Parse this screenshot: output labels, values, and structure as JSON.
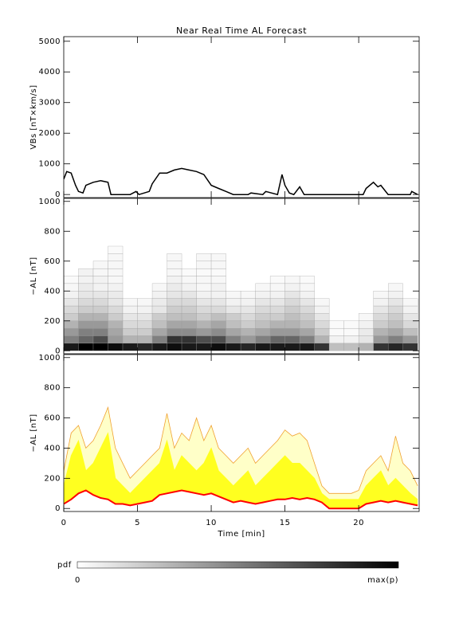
{
  "chart_data": [
    {
      "type": "line",
      "title": "Near Real Time AL Forecast",
      "y_label": "VBs [nT×km/s]",
      "x": [
        0,
        0.2,
        0.5,
        0.8,
        1,
        1.3,
        1.5,
        2,
        2.5,
        3,
        3.2,
        4.5,
        4.9,
        5.1,
        5.8,
        6,
        6.5,
        7,
        7.5,
        8,
        8.5,
        9,
        9.5,
        10,
        10.5,
        11,
        11.5,
        12.5,
        12.7,
        13.5,
        13.7,
        14.5,
        14.8,
        15,
        15.3,
        15.6,
        16,
        16.3,
        20.3,
        20.5,
        21,
        21.3,
        21.5,
        22,
        23.5,
        23.6,
        24
      ],
      "values": [
        500,
        750,
        700,
        300,
        100,
        50,
        300,
        400,
        450,
        400,
        0,
        0,
        100,
        0,
        100,
        350,
        700,
        700,
        800,
        850,
        800,
        750,
        650,
        300,
        200,
        100,
        0,
        0,
        50,
        0,
        100,
        0,
        650,
        300,
        50,
        0,
        250,
        0,
        0,
        200,
        400,
        250,
        300,
        0,
        0,
        100,
        0
      ],
      "color": "#000000",
      "xlim": [
        0,
        24.1
      ],
      "xticks": [
        0,
        5,
        10,
        15,
        20
      ],
      "ylim": [
        -100,
        5150
      ],
      "yticks": [
        0,
        1000,
        2000,
        3000,
        4000,
        5000
      ]
    },
    {
      "type": "heatmap",
      "y_label": "−AL [nT]",
      "x_bins": [
        0,
        1,
        2,
        3,
        4,
        5,
        6,
        7,
        8,
        9,
        10,
        11,
        12,
        13,
        14,
        15,
        16,
        17,
        18,
        19,
        20,
        21,
        22,
        23,
        24
      ],
      "y_bins": [
        0,
        50,
        100,
        150,
        200,
        250,
        300,
        350,
        400,
        450,
        500,
        550,
        600,
        650,
        700
      ],
      "z": [
        [
          0.9,
          1,
          1,
          0.95,
          0.9,
          0.85,
          0.9,
          0.95,
          0.9,
          0.9,
          0.95,
          0.9,
          0.85,
          0.9,
          0.9,
          0.9,
          0.9,
          0.8,
          0.25,
          0.25,
          0.3,
          0.8,
          0.85,
          0.8
        ],
        [
          0.5,
          0.6,
          0.7,
          0.4,
          0.3,
          0.3,
          0.5,
          0.8,
          0.8,
          0.7,
          0.7,
          0.5,
          0.4,
          0.5,
          0.6,
          0.6,
          0.5,
          0.3,
          0.05,
          0.05,
          0.1,
          0.4,
          0.5,
          0.4
        ],
        [
          0.4,
          0.5,
          0.5,
          0.35,
          0.2,
          0.2,
          0.35,
          0.45,
          0.45,
          0.4,
          0.45,
          0.35,
          0.3,
          0.35,
          0.4,
          0.4,
          0.35,
          0.2,
          0.02,
          0.02,
          0.08,
          0.3,
          0.35,
          0.25
        ],
        [
          0.3,
          0.4,
          0.4,
          0.3,
          0.15,
          0.15,
          0.25,
          0.35,
          0.35,
          0.3,
          0.35,
          0.25,
          0.2,
          0.25,
          0.3,
          0.3,
          0.25,
          0.15,
          0.02,
          0.02,
          0.05,
          0.2,
          0.25,
          0.15
        ],
        [
          0.2,
          0.3,
          0.3,
          0.2,
          0.1,
          0.1,
          0.2,
          0.25,
          0.25,
          0.2,
          0.25,
          0.2,
          0.15,
          0.2,
          0.2,
          0.25,
          0.2,
          0.1,
          0,
          0,
          0.03,
          0.15,
          0.2,
          0.1
        ],
        [
          0.15,
          0.2,
          0.2,
          0.15,
          0.05,
          0.05,
          0.1,
          0.2,
          0.2,
          0.15,
          0.15,
          0.1,
          0.1,
          0.15,
          0.15,
          0.2,
          0.15,
          0.05,
          0,
          0,
          0,
          0.1,
          0.15,
          0.05
        ],
        [
          0.1,
          0.15,
          0.15,
          0.1,
          0.03,
          0.03,
          0.08,
          0.15,
          0.15,
          0.1,
          0.1,
          0.05,
          0.05,
          0.1,
          0.1,
          0.15,
          0.1,
          0.03,
          0,
          0,
          0,
          0.05,
          0.1,
          0.03
        ],
        [
          0.05,
          0.1,
          0.1,
          0.08,
          0,
          0,
          0.05,
          0.1,
          0.1,
          0.05,
          0.05,
          0.03,
          0.03,
          0.05,
          0.05,
          0.1,
          0.05,
          0,
          0,
          0,
          0,
          0.03,
          0.05,
          0
        ],
        [
          0.03,
          0.08,
          0.05,
          0.05,
          0,
          0,
          0.03,
          0.08,
          0.05,
          0.03,
          0.05,
          0,
          0,
          0.03,
          0.03,
          0.05,
          0.03,
          0,
          0,
          0,
          0,
          0,
          0.03,
          0
        ],
        [
          0.02,
          0.05,
          0.05,
          0.03,
          0,
          0,
          0,
          0.05,
          0.03,
          0.03,
          0.03,
          0,
          0,
          0,
          0.02,
          0.03,
          0.02,
          0,
          0,
          0,
          0,
          0,
          0,
          0
        ],
        [
          0,
          0.05,
          0.03,
          0.03,
          0,
          0,
          0,
          0.03,
          0.02,
          0.02,
          0.02,
          0,
          0,
          0,
          0,
          0,
          0,
          0,
          0,
          0,
          0,
          0,
          0,
          0
        ],
        [
          0,
          0,
          0.03,
          0.03,
          0,
          0,
          0,
          0.03,
          0,
          0.03,
          0.03,
          0,
          0,
          0,
          0,
          0,
          0,
          0,
          0,
          0,
          0,
          0,
          0,
          0
        ],
        [
          0,
          0,
          0,
          0.03,
          0,
          0,
          0,
          0.03,
          0,
          0.03,
          0.03,
          0,
          0,
          0,
          0,
          0,
          0,
          0,
          0,
          0,
          0,
          0,
          0,
          0
        ],
        [
          0,
          0,
          0,
          0.02,
          0,
          0,
          0,
          0,
          0,
          0,
          0,
          0,
          0,
          0,
          0,
          0,
          0,
          0,
          0,
          0,
          0,
          0,
          0,
          0
        ]
      ],
      "xlim": [
        0,
        24.1
      ],
      "xticks": [
        0,
        5,
        10,
        15,
        20
      ],
      "ylim": [
        -20,
        1020
      ],
      "yticks": [
        0,
        200,
        400,
        600,
        800,
        1000
      ]
    },
    {
      "type": "band",
      "y_label": "−AL [nT]",
      "x_label": "Time [min]",
      "x": [
        0,
        0.5,
        1,
        1.5,
        2,
        2.5,
        3,
        3.5,
        4,
        4.5,
        5,
        5.5,
        6,
        6.5,
        7,
        7.5,
        8,
        8.5,
        9,
        9.5,
        10,
        10.5,
        11,
        11.5,
        12,
        12.5,
        13,
        13.5,
        14,
        14.5,
        15,
        15.5,
        16,
        16.5,
        17,
        17.5,
        18,
        18.5,
        19,
        19.5,
        20,
        20.5,
        21,
        21.5,
        22,
        22.5,
        23,
        23.5,
        24
      ],
      "series": [
        {
          "color": "#f0a030",
          "values": [
            250,
            500,
            550,
            400,
            450,
            550,
            670,
            400,
            300,
            200,
            250,
            300,
            350,
            400,
            630,
            400,
            500,
            450,
            600,
            450,
            550,
            400,
            350,
            300,
            350,
            400,
            300,
            350,
            400,
            450,
            520,
            480,
            500,
            450,
            300,
            150,
            100,
            100,
            100,
            100,
            120,
            250,
            300,
            350,
            250,
            480,
            300,
            250,
            150
          ]
        },
        {
          "color": "#ffff20",
          "values": [
            150,
            350,
            450,
            250,
            300,
            400,
            500,
            200,
            150,
            100,
            150,
            200,
            250,
            300,
            450,
            250,
            350,
            300,
            250,
            300,
            400,
            250,
            200,
            150,
            200,
            250,
            150,
            200,
            250,
            300,
            350,
            300,
            300,
            250,
            200,
            100,
            60,
            60,
            60,
            60,
            60,
            150,
            200,
            250,
            150,
            200,
            150,
            100,
            60
          ]
        },
        {
          "color": "#ff0000",
          "values": [
            30,
            60,
            100,
            120,
            90,
            70,
            60,
            30,
            30,
            20,
            30,
            40,
            50,
            90,
            100,
            110,
            120,
            110,
            100,
            90,
            100,
            80,
            60,
            40,
            50,
            40,
            30,
            40,
            50,
            60,
            60,
            70,
            60,
            70,
            60,
            40,
            0,
            0,
            0,
            0,
            0,
            30,
            40,
            50,
            40,
            50,
            40,
            30,
            20
          ]
        }
      ],
      "xlim": [
        0,
        24.1
      ],
      "xticks": [
        0,
        5,
        10,
        15,
        20
      ],
      "ylim": [
        -20,
        1020
      ],
      "yticks": [
        0,
        200,
        400,
        600,
        800,
        1000
      ]
    }
  ],
  "colorbar": {
    "label": "pdf",
    "min_label": "0",
    "max_label": "max(p)"
  }
}
